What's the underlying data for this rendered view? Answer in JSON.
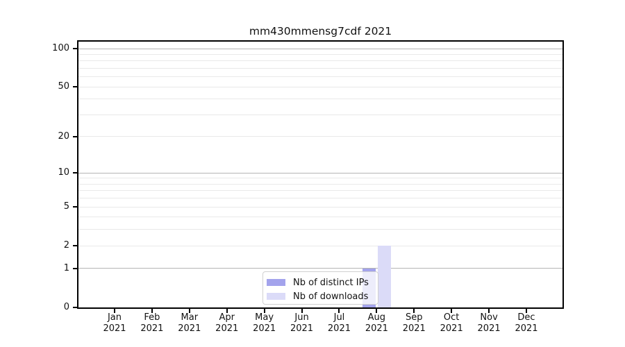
{
  "title": "mm430mmensg7cdf 2021",
  "chart_data": {
    "type": "bar",
    "title": "mm430mmensg7cdf 2021",
    "x_categories": [
      "Jan",
      "Feb",
      "Mar",
      "Apr",
      "May",
      "Jun",
      "Jul",
      "Aug",
      "Sep",
      "Oct",
      "Nov",
      "Dec"
    ],
    "x_year": "2021",
    "series": [
      {
        "name": "Nb of distinct IPs",
        "color": "#a3a3ec",
        "values": [
          0,
          0,
          0,
          0,
          0,
          0,
          0,
          1,
          0,
          0,
          0,
          0
        ]
      },
      {
        "name": "Nb of downloads",
        "color": "#dbdbf8",
        "values": [
          0,
          0,
          0,
          0,
          0,
          0,
          0,
          2,
          0,
          0,
          0,
          0
        ]
      }
    ],
    "y_scale": "log1p",
    "ylim": [
      0,
      113.4
    ],
    "y_ticks": [
      0,
      1,
      2,
      5,
      10,
      20,
      50,
      100
    ],
    "grid": {
      "major_values": [
        1,
        10,
        100
      ],
      "minor_values": [
        2,
        3,
        4,
        5,
        6,
        7,
        8,
        9,
        20,
        30,
        40,
        50,
        60,
        70,
        80,
        90
      ],
      "major_color": "#b4b4b4",
      "minor_color": "#e9e9e9"
    },
    "legend_position": "lower-center"
  }
}
